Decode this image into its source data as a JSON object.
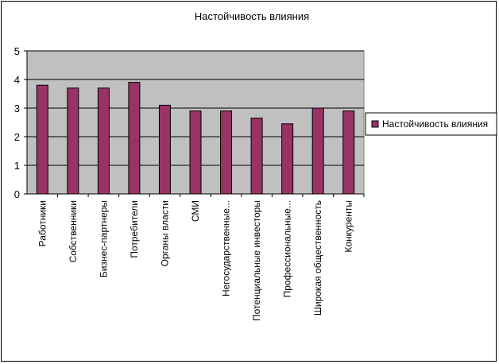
{
  "chart_data": {
    "type": "bar",
    "title": "Настойчивость влияния",
    "categories": [
      "Работники",
      "Собственники",
      "Бизнес-партнеры",
      "Потребители",
      "Органы власти",
      "СМИ",
      "Негосударственные...",
      "Потенциальные инвесторы",
      "Профессиональные...",
      "Широкая общественность",
      "Конкуренты"
    ],
    "series": [
      {
        "name": "Настойчивость влияния",
        "values": [
          3.8,
          3.7,
          3.7,
          3.9,
          3.1,
          2.9,
          2.9,
          2.65,
          2.45,
          3.0,
          2.9
        ]
      }
    ],
    "ylim": [
      0,
      5
    ],
    "yticks": [
      0,
      1,
      2,
      3,
      4,
      5
    ],
    "grid": true,
    "legend": "right",
    "colors": {
      "bar_fill": "#993366",
      "plot_background": "#c0c0c0",
      "gridline": "#000000"
    }
  }
}
